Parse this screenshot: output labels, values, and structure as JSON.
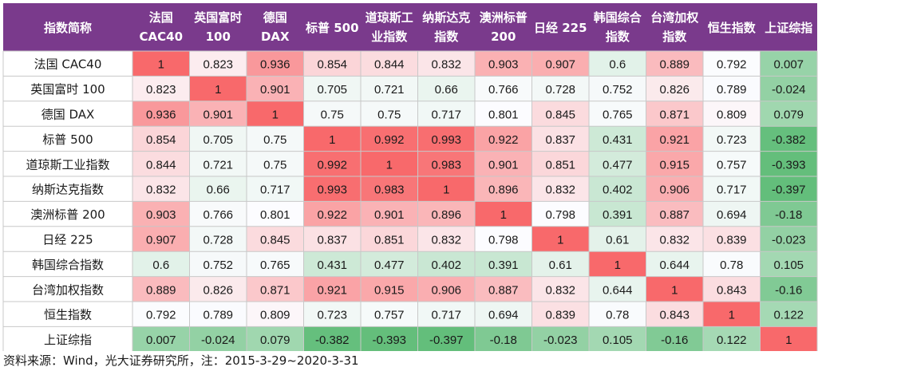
{
  "header": {
    "corner_label": "指数简称",
    "columns": [
      [
        "法国",
        "CAC40"
      ],
      [
        "英国富时",
        "100"
      ],
      [
        "德国",
        "DAX"
      ],
      [
        "标普 500"
      ],
      [
        "道琼斯工",
        "业指数"
      ],
      [
        "纳斯达克",
        "指数"
      ],
      [
        "澳洲标普",
        "200"
      ],
      [
        "日经 225"
      ],
      [
        "韩国综合",
        "指数"
      ],
      [
        "台湾加权",
        "指数"
      ],
      [
        "恒生指数"
      ],
      [
        "上证综指"
      ]
    ]
  },
  "chart_data": {
    "type": "heatmap",
    "rows": [
      "法国 CAC40",
      "英国富时 100",
      "德国 DAX",
      "标普 500",
      "道琼斯工业指数",
      "纳斯达克指数",
      "澳洲标普 200",
      "日经 225",
      "韩国综合指数",
      "台湾加权指数",
      "恒生指数",
      "上证综指"
    ],
    "columns": [
      "法国 CAC40",
      "英国富时 100",
      "德国 DAX",
      "标普 500",
      "道琼斯工业指数",
      "纳斯达克指数",
      "澳洲标普 200",
      "日经 225",
      "韩国综合指数",
      "台湾加权指数",
      "恒生指数",
      "上证综指"
    ],
    "values": [
      [
        1,
        0.823,
        0.936,
        0.854,
        0.844,
        0.832,
        0.903,
        0.907,
        0.6,
        0.889,
        0.792,
        0.007
      ],
      [
        0.823,
        1,
        0.901,
        0.705,
        0.721,
        0.66,
        0.766,
        0.728,
        0.752,
        0.826,
        0.789,
        -0.024
      ],
      [
        0.936,
        0.901,
        1,
        0.75,
        0.75,
        0.717,
        0.801,
        0.845,
        0.765,
        0.871,
        0.809,
        0.079
      ],
      [
        0.854,
        0.705,
        0.75,
        1,
        0.992,
        0.993,
        0.922,
        0.837,
        0.431,
        0.921,
        0.723,
        -0.382
      ],
      [
        0.844,
        0.721,
        0.75,
        0.992,
        1,
        0.983,
        0.901,
        0.851,
        0.477,
        0.915,
        0.757,
        -0.393
      ],
      [
        0.832,
        0.66,
        0.717,
        0.993,
        0.983,
        1,
        0.896,
        0.832,
        0.402,
        0.906,
        0.717,
        -0.397
      ],
      [
        0.903,
        0.766,
        0.801,
        0.922,
        0.901,
        0.896,
        1,
        0.798,
        0.391,
        0.887,
        0.694,
        -0.18
      ],
      [
        0.907,
        0.728,
        0.845,
        0.837,
        0.851,
        0.832,
        0.798,
        1,
        0.61,
        0.832,
        0.839,
        -0.023
      ],
      [
        0.6,
        0.752,
        0.765,
        0.431,
        0.477,
        0.402,
        0.391,
        0.61,
        1,
        0.644,
        0.78,
        0.105
      ],
      [
        0.889,
        0.826,
        0.871,
        0.921,
        0.915,
        0.906,
        0.887,
        0.832,
        0.644,
        1,
        0.843,
        -0.16
      ],
      [
        0.792,
        0.789,
        0.809,
        0.723,
        0.757,
        0.717,
        0.694,
        0.839,
        0.78,
        0.843,
        1,
        0.122
      ],
      [
        0.007,
        -0.024,
        0.079,
        -0.382,
        -0.393,
        -0.397,
        -0.18,
        -0.023,
        0.105,
        -0.16,
        0.122,
        1
      ]
    ],
    "colors": {
      "header_fill": "#7a3a8c",
      "header_text": "#ffffff",
      "high": "#f8696b",
      "mid": "#fcfcff",
      "low": "#63be7b",
      "grid": "#c8c8c8"
    }
  },
  "source_note": "资料来源：Wind，光大证券研究所，注：2015-3-29~2020-3-31"
}
